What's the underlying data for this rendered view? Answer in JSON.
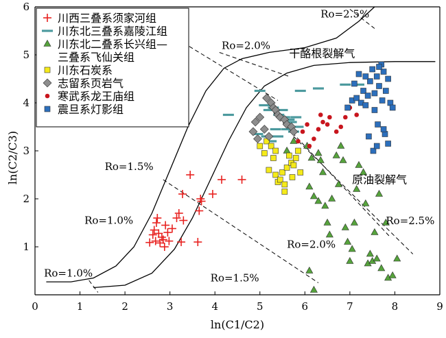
{
  "chart_data": {
    "type": "scatter",
    "xlabel": "ln(C1/C2)",
    "ylabel": "ln(C2/C3)",
    "xlim": [
      0,
      9
    ],
    "ylim": [
      0,
      6
    ],
    "x_ticks": [
      0,
      1,
      2,
      3,
      4,
      5,
      6,
      7,
      8,
      9
    ],
    "y_ticks": [
      1,
      2,
      3,
      4,
      5,
      6
    ],
    "grid": false,
    "legend_position": "top-left",
    "colors": {
      "red": "#e8211f",
      "teal": "#4c9a9e",
      "green": "#56a33c",
      "yellow": "#f5ea1a",
      "gray": "#8d8d8d",
      "darkred": "#c8151d",
      "blue": "#2c6fbc"
    },
    "series": [
      {
        "name": "川西三叠系须家河组",
        "marker": "plus",
        "color": "#e8211f",
        "points": [
          [
            2.55,
            1.09
          ],
          [
            2.62,
            1.25
          ],
          [
            2.65,
            1.35
          ],
          [
            2.68,
            1.12
          ],
          [
            2.7,
            1.5
          ],
          [
            2.72,
            1.6
          ],
          [
            2.75,
            1.28
          ],
          [
            2.78,
            1.08
          ],
          [
            2.82,
            1.2
          ],
          [
            2.85,
            1.15
          ],
          [
            2.88,
            1.0
          ],
          [
            2.9,
            1.45
          ],
          [
            2.95,
            1.3
          ],
          [
            2.98,
            1.12
          ],
          [
            3.05,
            1.38
          ],
          [
            3.15,
            1.6
          ],
          [
            3.2,
            1.7
          ],
          [
            3.25,
            1.1
          ],
          [
            3.3,
            1.55
          ],
          [
            3.28,
            2.1
          ],
          [
            3.45,
            2.5
          ],
          [
            3.62,
            1.1
          ],
          [
            3.65,
            1.75
          ],
          [
            3.68,
            2.0
          ],
          [
            3.7,
            1.95
          ],
          [
            3.95,
            2.1
          ],
          [
            4.15,
            2.4
          ],
          [
            4.6,
            2.4
          ]
        ]
      },
      {
        "name": "川东北三叠系嘉陵江组",
        "marker": "dash",
        "color": "#4c9a9e",
        "points": [
          [
            4.3,
            3.75
          ],
          [
            4.95,
            3.35
          ],
          [
            5.0,
            4.25
          ],
          [
            5.1,
            3.95
          ],
          [
            5.15,
            3.3
          ],
          [
            5.2,
            3.85
          ],
          [
            5.25,
            3.2
          ],
          [
            5.3,
            3.9
          ],
          [
            5.35,
            3.45
          ],
          [
            5.4,
            3.3
          ],
          [
            5.42,
            3.75
          ],
          [
            5.5,
            3.85
          ],
          [
            5.55,
            3.7
          ],
          [
            5.6,
            3.45
          ],
          [
            5.65,
            3.65
          ],
          [
            5.7,
            3.6
          ],
          [
            5.75,
            3.4
          ],
          [
            5.8,
            3.7
          ],
          [
            5.85,
            3.5
          ],
          [
            5.9,
            4.25
          ],
          [
            6.3,
            4.3
          ],
          [
            6.9,
            4.38
          ],
          [
            7.2,
            4.38
          ]
        ]
      },
      {
        "name": "川东北二叠系长兴组—三叠系飞仙关组",
        "marker": "triangle",
        "color": "#56a33c",
        "points": [
          [
            6.05,
            3.1
          ],
          [
            6.15,
            2.85
          ],
          [
            6.3,
            2.95
          ],
          [
            6.35,
            2.8
          ],
          [
            6.4,
            2.55
          ],
          [
            6.1,
            2.25
          ],
          [
            6.2,
            2.05
          ],
          [
            6.3,
            1.95
          ],
          [
            6.45,
            1.85
          ],
          [
            6.5,
            1.5
          ],
          [
            6.55,
            1.25
          ],
          [
            6.6,
            2.0
          ],
          [
            6.7,
            2.9
          ],
          [
            6.75,
            2.3
          ],
          [
            6.8,
            3.1
          ],
          [
            6.85,
            2.8
          ],
          [
            6.9,
            1.4
          ],
          [
            6.95,
            1.1
          ],
          [
            7.0,
            0.7
          ],
          [
            7.05,
            0.95
          ],
          [
            7.1,
            1.5
          ],
          [
            7.15,
            2.2
          ],
          [
            7.2,
            2.7
          ],
          [
            7.3,
            2.55
          ],
          [
            7.35,
            1.9
          ],
          [
            7.4,
            0.65
          ],
          [
            7.45,
            0.85
          ],
          [
            7.5,
            0.7
          ],
          [
            7.55,
            1.3
          ],
          [
            7.6,
            0.75
          ],
          [
            7.65,
            2.1
          ],
          [
            7.7,
            0.55
          ],
          [
            7.8,
            1.5
          ],
          [
            7.85,
            0.35
          ],
          [
            7.95,
            0.4
          ],
          [
            8.05,
            0.75
          ],
          [
            6.1,
            0.5
          ],
          [
            6.2,
            0.1
          ],
          [
            5.6,
            3.0
          ],
          [
            5.75,
            3.2
          ]
        ]
      },
      {
        "name": "川东石炭系",
        "marker": "square",
        "color": "#f5ea1a",
        "points": [
          [
            5.1,
            2.95
          ],
          [
            5.15,
            3.2
          ],
          [
            5.2,
            2.6
          ],
          [
            5.25,
            3.1
          ],
          [
            5.3,
            2.85
          ],
          [
            5.35,
            2.5
          ],
          [
            5.4,
            2.35
          ],
          [
            5.45,
            2.4
          ],
          [
            5.5,
            2.55
          ],
          [
            5.55,
            2.3
          ],
          [
            5.6,
            2.65
          ],
          [
            5.65,
            2.9
          ],
          [
            5.7,
            2.75
          ],
          [
            5.72,
            2.45
          ],
          [
            5.75,
            2.7
          ],
          [
            5.8,
            2.85
          ],
          [
            5.85,
            3.0
          ],
          [
            5.9,
            2.55
          ],
          [
            5.55,
            2.15
          ],
          [
            5.35,
            3.0
          ],
          [
            5.0,
            3.1
          ]
        ]
      },
      {
        "name": "志留系页岩气",
        "marker": "diamond",
        "color": "#8d8d8d",
        "points": [
          [
            4.85,
            3.4
          ],
          [
            4.9,
            3.6
          ],
          [
            4.95,
            3.25
          ],
          [
            5.0,
            3.7
          ],
          [
            5.1,
            3.45
          ],
          [
            5.2,
            3.3
          ],
          [
            5.15,
            4.1
          ],
          [
            5.25,
            4.0
          ],
          [
            5.3,
            3.9
          ],
          [
            5.35,
            3.85
          ],
          [
            5.4,
            3.75
          ],
          [
            5.45,
            3.7
          ],
          [
            5.55,
            3.65
          ],
          [
            5.6,
            3.55
          ],
          [
            5.7,
            3.5
          ],
          [
            5.75,
            3.4
          ]
        ]
      },
      {
        "name": "寒武系龙王庙组",
        "marker": "circle",
        "color": "#c8151d",
        "points": [
          [
            5.85,
            3.2
          ],
          [
            5.95,
            3.4
          ],
          [
            6.05,
            3.55
          ],
          [
            6.1,
            3.1
          ],
          [
            6.2,
            3.25
          ],
          [
            6.3,
            3.45
          ],
          [
            6.35,
            3.75
          ],
          [
            6.4,
            3.6
          ],
          [
            6.5,
            3.55
          ],
          [
            6.55,
            3.7
          ],
          [
            6.7,
            3.4
          ],
          [
            6.8,
            3.5
          ],
          [
            6.9,
            3.7
          ],
          [
            7.0,
            3.9
          ],
          [
            7.05,
            4.05
          ],
          [
            7.15,
            3.75
          ]
        ]
      },
      {
        "name": "震旦系灯影组",
        "marker": "square",
        "color": "#2c6fbc",
        "points": [
          [
            6.95,
            3.9
          ],
          [
            7.05,
            4.05
          ],
          [
            7.1,
            4.4
          ],
          [
            7.15,
            4.1
          ],
          [
            7.2,
            4.6
          ],
          [
            7.25,
            4.0
          ],
          [
            7.3,
            4.25
          ],
          [
            7.35,
            3.95
          ],
          [
            7.4,
            4.15
          ],
          [
            7.42,
            3.3
          ],
          [
            7.45,
            4.45
          ],
          [
            7.5,
            4.7
          ],
          [
            7.52,
            3.0
          ],
          [
            7.55,
            4.2
          ],
          [
            7.6,
            4.55
          ],
          [
            7.62,
            3.55
          ],
          [
            7.65,
            4.35
          ],
          [
            7.7,
            4.8
          ],
          [
            7.72,
            4.05
          ],
          [
            7.75,
            4.65
          ],
          [
            7.78,
            3.35
          ],
          [
            7.8,
            4.25
          ],
          [
            7.85,
            4.5
          ],
          [
            7.9,
            4.0
          ],
          [
            7.55,
            3.85
          ],
          [
            7.6,
            3.1
          ],
          [
            7.75,
            3.45
          ],
          [
            7.85,
            3.15
          ],
          [
            7.95,
            3.9
          ],
          [
            7.65,
            4.75
          ],
          [
            7.35,
            4.55
          ]
        ]
      }
    ],
    "annotations": {
      "ro_25_top": "Ro=2.5%",
      "ro_20_top": "Ro=2.0%",
      "gan_lao_gen": "干酪根裂解气",
      "ro_15_left": "Ro=1.5%",
      "ro_10_left": "Ro=1.0%",
      "ro_10_bottom": "Ro=1.0%",
      "ro_15_bottom": "Ro=1.5%",
      "ro_20_mid": "Ro=2.0%",
      "ro_25_right": "Ro=2.5%",
      "yuan_you": "原油裂解气"
    }
  }
}
